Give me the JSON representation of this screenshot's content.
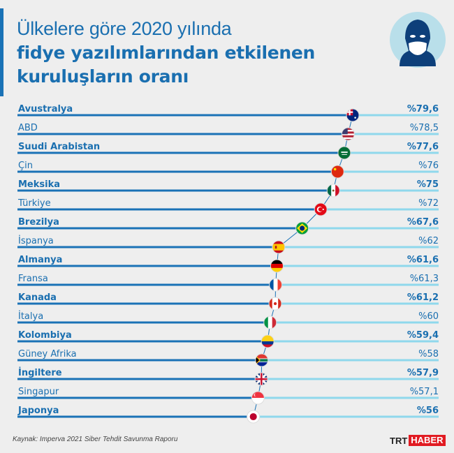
{
  "header": {
    "title_line1": "Ülkelere göre 2020 yılında",
    "title_line2": "fidye yazılımlarından etkilenen",
    "title_line3": "kuruluşların oranı",
    "icon": "hacker-icon"
  },
  "colors": {
    "text": "#1a6fb0",
    "line_dark": "#1a72b6",
    "line_light": "#8fd8ec",
    "icon_bg": "#b9dfea",
    "icon_fg": "#0d3f7a"
  },
  "chart_data": {
    "type": "lollipop",
    "xlim": [
      0,
      100
    ],
    "unit_prefix": "%",
    "categories": [
      "Avustralya",
      "ABD",
      "Suudi Arabistan",
      "Çin",
      "Meksika",
      "Türkiye",
      "Brezilya",
      "İspanya",
      "Almanya",
      "Fransa",
      "Kanada",
      "İtalya",
      "Kolombiya",
      "Güney Afrika",
      "İngiltere",
      "Singapur",
      "Japonya"
    ],
    "values": [
      79.6,
      78.5,
      77.6,
      76,
      75,
      72,
      67.6,
      62,
      61.6,
      61.3,
      61.2,
      60,
      59.4,
      58,
      57.9,
      57.1,
      56
    ],
    "value_labels": [
      "%79,6",
      "%78,5",
      "%77,6",
      "%76",
      "%75",
      "%72",
      "%67,6",
      "%62",
      "%61,6",
      "%61,3",
      "%61,2",
      "%60",
      "%59,4",
      "%58",
      "%57,9",
      "%57,1",
      "%56"
    ],
    "flags": [
      "au",
      "us",
      "sa",
      "cn",
      "mx",
      "tr",
      "br",
      "es",
      "de",
      "fr",
      "ca",
      "it",
      "co",
      "za",
      "gb",
      "sg",
      "jp"
    ]
  },
  "footer": {
    "source": "Kaynak: Imperva 2021 Siber Tehdit Savunma Raporu",
    "logo_trt": "TRT",
    "logo_haber": "HABER"
  }
}
